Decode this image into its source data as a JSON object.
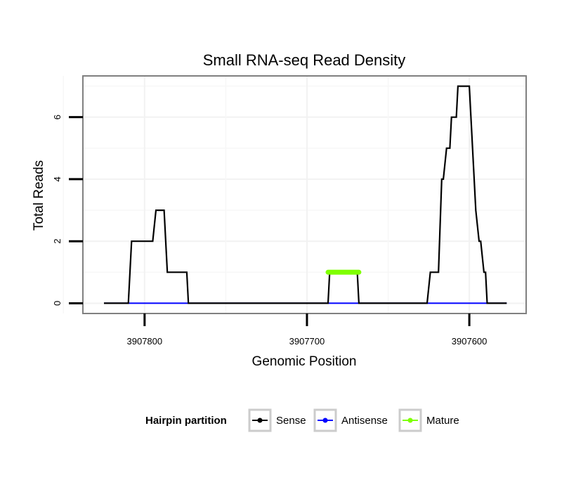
{
  "chart_data": {
    "type": "line",
    "title": "Small RNA-seq Read Density",
    "xlabel": "Genomic Position",
    "ylabel": "Total Reads",
    "xlim": [
      3907838,
      3907565
    ],
    "ylim": [
      -0.33,
      7.33
    ],
    "x_reversed": true,
    "x_ticks": [
      3907800,
      3907700,
      3907600
    ],
    "x_tick_labels": [
      "3907800",
      "3907700",
      "3907600"
    ],
    "y_ticks": [
      0,
      2,
      4,
      6
    ],
    "y_tick_labels": [
      "0",
      "2",
      "4",
      "6"
    ],
    "grid": true,
    "legend": {
      "title": "Hairpin partition",
      "position": "bottom",
      "entries": [
        "Sense",
        "Antisense",
        "Mature"
      ]
    },
    "series": [
      {
        "name": "Sense",
        "color": "#000000",
        "points": [
          [
            3907825,
            0
          ],
          [
            3907810,
            0
          ],
          [
            3907808,
            2
          ],
          [
            3907795,
            2
          ],
          [
            3907793,
            3
          ],
          [
            3907788,
            3
          ],
          [
            3907787,
            2
          ],
          [
            3907786,
            1
          ],
          [
            3907774,
            1
          ],
          [
            3907773,
            0
          ],
          [
            3907687,
            0
          ],
          [
            3907686,
            1
          ],
          [
            3907669,
            1
          ],
          [
            3907668,
            0
          ],
          [
            3907626,
            0
          ],
          [
            3907624,
            1
          ],
          [
            3907619,
            1
          ],
          [
            3907617,
            4
          ],
          [
            3907616,
            4
          ],
          [
            3907614,
            5
          ],
          [
            3907612,
            5
          ],
          [
            3907611,
            6
          ],
          [
            3907608,
            6
          ],
          [
            3907607,
            7
          ],
          [
            3907600,
            7
          ],
          [
            3907598,
            5
          ],
          [
            3907596,
            3
          ],
          [
            3907594,
            2
          ],
          [
            3907593,
            2
          ],
          [
            3907591,
            1
          ],
          [
            3907590,
            1
          ],
          [
            3907589,
            0
          ],
          [
            3907577,
            0
          ]
        ]
      },
      {
        "name": "Antisense",
        "color": "#0000ff",
        "points": [
          [
            3907825,
            0
          ],
          [
            3907577,
            0
          ]
        ]
      },
      {
        "name": "Mature",
        "color": "#7fff00",
        "points": [
          [
            3907687,
            1
          ],
          [
            3907668,
            1
          ]
        ]
      }
    ]
  }
}
